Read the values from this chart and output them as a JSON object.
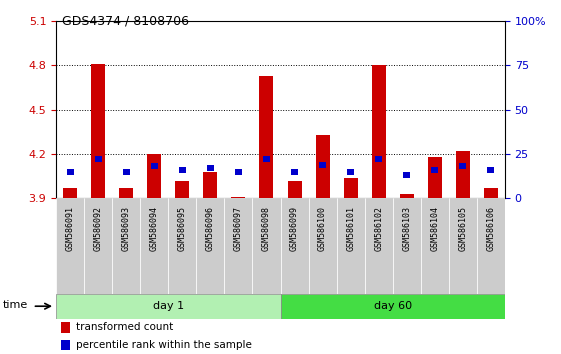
{
  "title": "GDS4374 / 8108706",
  "samples": [
    "GSM586091",
    "GSM586092",
    "GSM586093",
    "GSM586094",
    "GSM586095",
    "GSM586096",
    "GSM586097",
    "GSM586098",
    "GSM586099",
    "GSM586100",
    "GSM586101",
    "GSM586102",
    "GSM586103",
    "GSM586104",
    "GSM586105",
    "GSM586106"
  ],
  "red_values": [
    3.97,
    4.81,
    3.97,
    4.2,
    4.02,
    4.08,
    3.91,
    4.73,
    4.02,
    4.33,
    4.04,
    4.8,
    3.93,
    4.18,
    4.22,
    3.97
  ],
  "blue_pct": [
    15,
    22,
    15,
    18,
    16,
    17,
    15,
    22,
    15,
    19,
    15,
    22,
    13,
    16,
    18,
    16
  ],
  "baseline": 3.9,
  "ylim_left": [
    3.9,
    5.1
  ],
  "ylim_right": [
    0,
    100
  ],
  "yticks_left": [
    3.9,
    4.2,
    4.5,
    4.8,
    5.1
  ],
  "yticks_right": [
    0,
    25,
    50,
    75,
    100
  ],
  "ytick_labels_right": [
    "0",
    "25",
    "50",
    "75",
    "100%"
  ],
  "day1_samples": 8,
  "day60_samples": 8,
  "day1_label": "day 1",
  "day60_label": "day 60",
  "time_label": "time",
  "red_color": "#cc0000",
  "blue_color": "#0000cc",
  "green_light": "#b2f0b2",
  "green_dark": "#44dd44",
  "bg_color": "#ffffff",
  "cell_bg": "#cccccc",
  "legend_red": "transformed count",
  "legend_blue": "percentile rank within the sample",
  "bar_width": 0.5,
  "blue_bar_width": 0.25,
  "grid_ticks": [
    4.2,
    4.5,
    4.8
  ],
  "dotgrid_color": "#888888"
}
